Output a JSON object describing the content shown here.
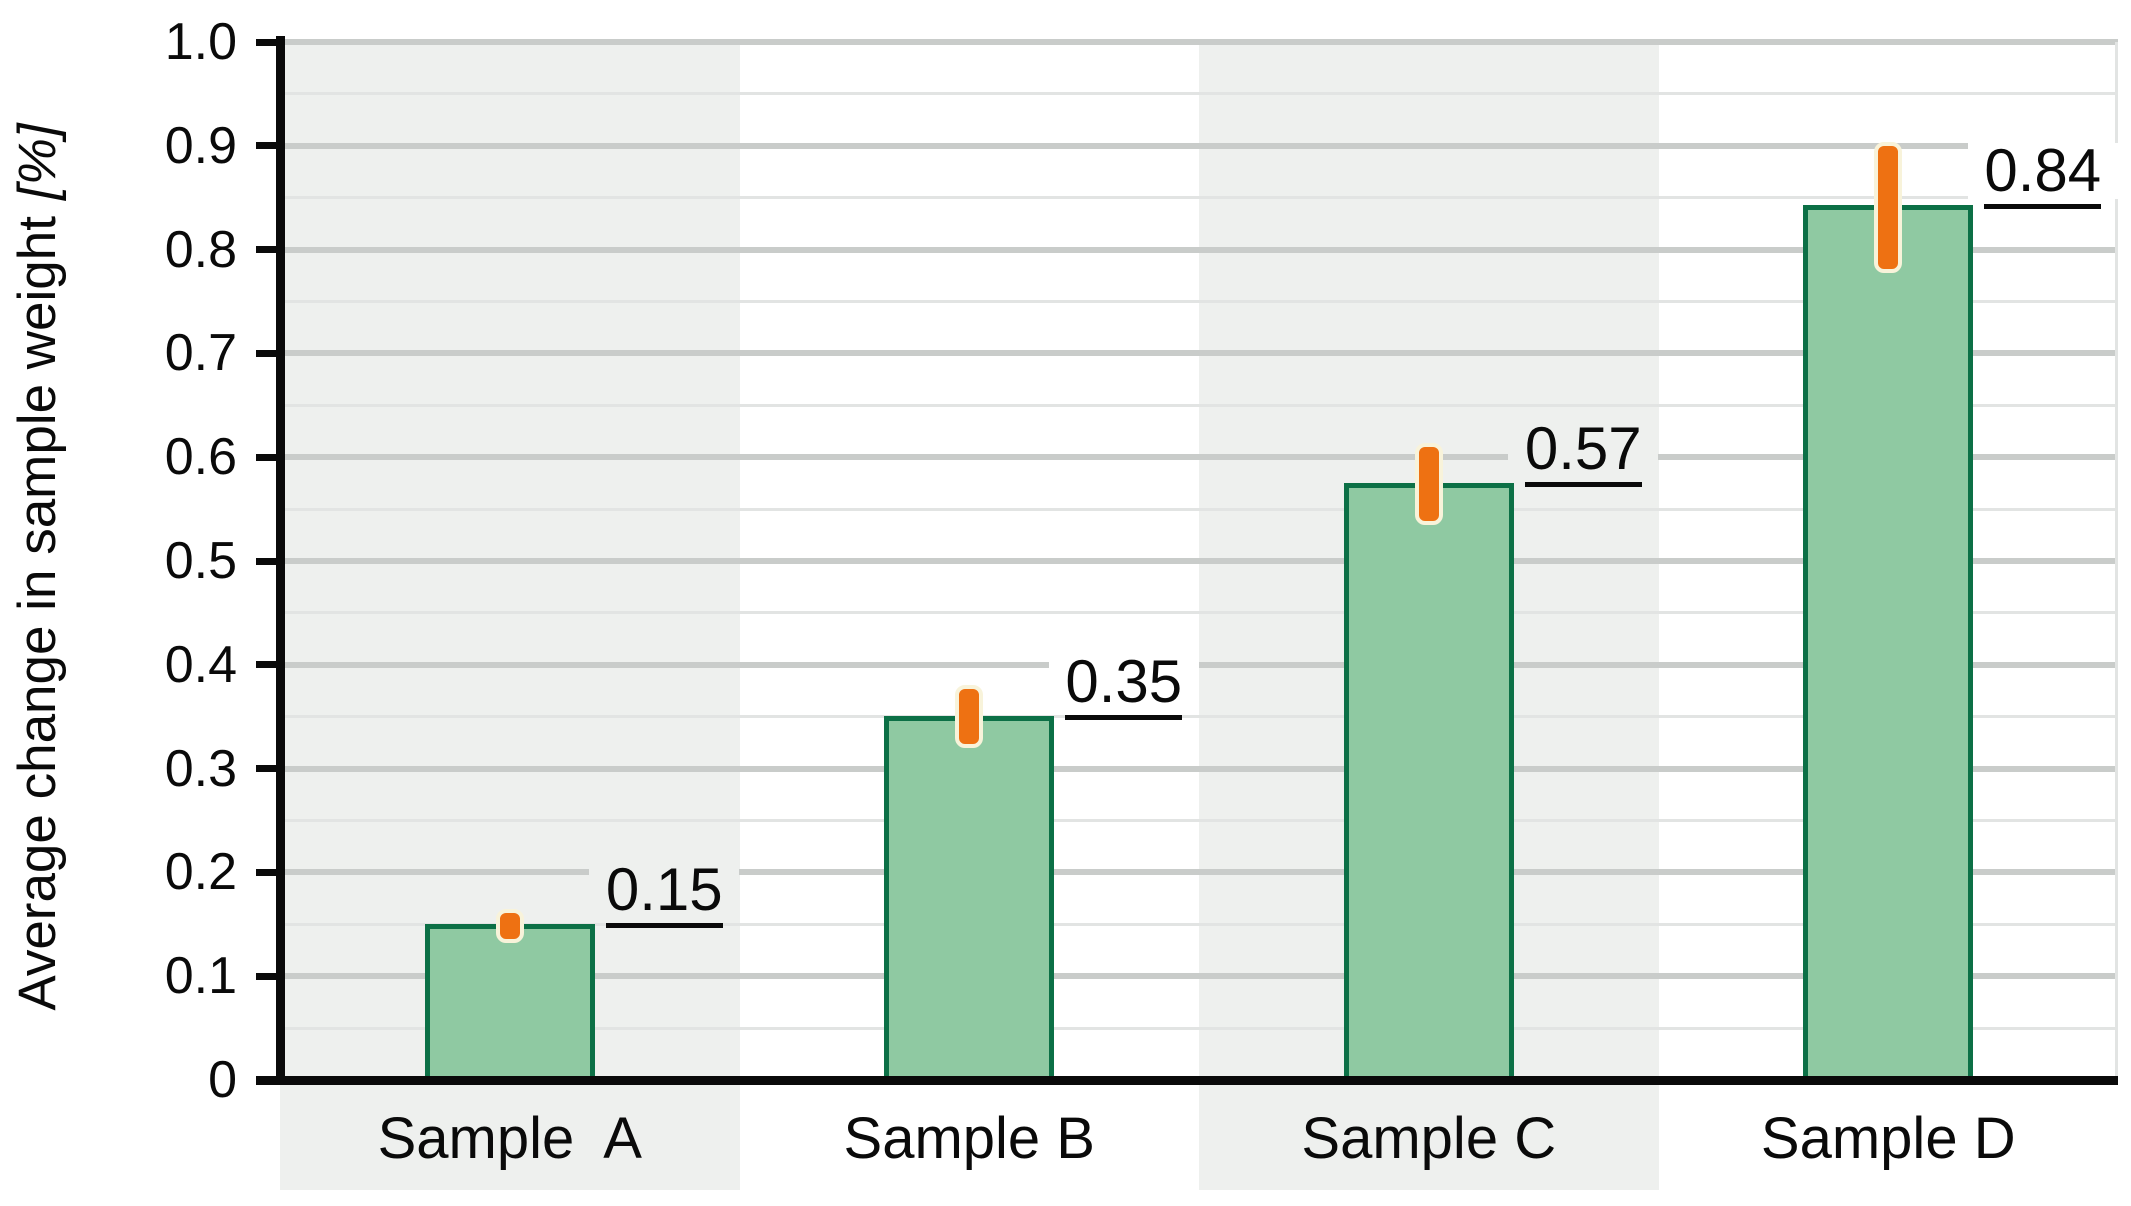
{
  "chart_data": {
    "type": "bar",
    "title": "",
    "ylabel": "Average change in sample weight",
    "ylabel_unit": "[%]",
    "categories": [
      "Sample  A",
      "Sample B",
      "Sample C",
      "Sample D"
    ],
    "values": [
      0.15,
      0.351,
      0.575,
      0.843
    ],
    "value_labels": [
      "0.15",
      "0.35",
      "0.57",
      "0.84"
    ],
    "errors": [
      {
        "low": 0.132,
        "high": 0.165
      },
      {
        "low": 0.32,
        "high": 0.381
      },
      {
        "low": 0.535,
        "high": 0.614
      },
      {
        "low": 0.777,
        "high": 0.904
      }
    ],
    "ylim": [
      0,
      1.0
    ],
    "ytick_labels": [
      "0",
      "0.1",
      "0.2",
      "0.3",
      "0.4",
      "0.5",
      "0.6",
      "0.7",
      "0.8",
      "0.9",
      "1.0"
    ],
    "ytick_step": 0.1,
    "minor_grid_step": 0.05,
    "grid": true,
    "legend": "none",
    "colors": {
      "bar_fill": "#8fc9a2",
      "bar_border": "#0c7046",
      "error_bar": "#ee7112",
      "error_bar_halo": "#f8f3da",
      "band_shade": "#eef0ee",
      "band_plain": "#ffffff",
      "grid_major": "#c9ccca",
      "grid_minor": "#e2e4e3",
      "axis": "#0a0a0a",
      "text": "#0a0a0a",
      "value_underline": "#0a0a0a"
    }
  }
}
